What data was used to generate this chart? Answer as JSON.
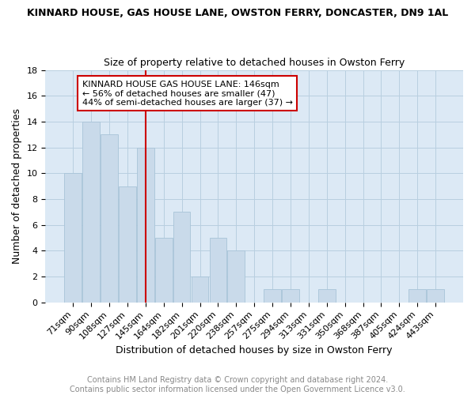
{
  "title": "KINNARD HOUSE, GAS HOUSE LANE, OWSTON FERRY, DONCASTER, DN9 1AL",
  "subtitle": "Size of property relative to detached houses in Owston Ferry",
  "xlabel": "Distribution of detached houses by size in Owston Ferry",
  "ylabel": "Number of detached properties",
  "categories": [
    "71sqm",
    "90sqm",
    "108sqm",
    "127sqm",
    "145sqm",
    "164sqm",
    "182sqm",
    "201sqm",
    "220sqm",
    "238sqm",
    "257sqm",
    "275sqm",
    "294sqm",
    "313sqm",
    "331sqm",
    "350sqm",
    "368sqm",
    "387sqm",
    "405sqm",
    "424sqm",
    "443sqm"
  ],
  "values": [
    10,
    14,
    13,
    9,
    12,
    5,
    7,
    2,
    5,
    4,
    0,
    1,
    1,
    0,
    1,
    0,
    0,
    0,
    0,
    1,
    1
  ],
  "bar_color": "#c9daea",
  "bar_edge_color": "#a8c4d8",
  "grid_color": "#b8cfe0",
  "vline_index": 4,
  "vline_color": "#cc0000",
  "annotation_text": "KINNARD HOUSE GAS HOUSE LANE: 146sqm\n← 56% of detached houses are smaller (47)\n44% of semi-detached houses are larger (37) →",
  "annotation_box_color": "#ffffff",
  "annotation_box_edge": "#cc0000",
  "ylim": [
    0,
    18
  ],
  "yticks": [
    0,
    2,
    4,
    6,
    8,
    10,
    12,
    14,
    16,
    18
  ],
  "footnote": "Contains HM Land Registry data © Crown copyright and database right 2024.\nContains public sector information licensed under the Open Government Licence v3.0.",
  "title_fontsize": 9,
  "subtitle_fontsize": 9,
  "xlabel_fontsize": 9,
  "ylabel_fontsize": 9,
  "annotation_fontsize": 8,
  "footnote_fontsize": 7,
  "tick_fontsize": 8
}
